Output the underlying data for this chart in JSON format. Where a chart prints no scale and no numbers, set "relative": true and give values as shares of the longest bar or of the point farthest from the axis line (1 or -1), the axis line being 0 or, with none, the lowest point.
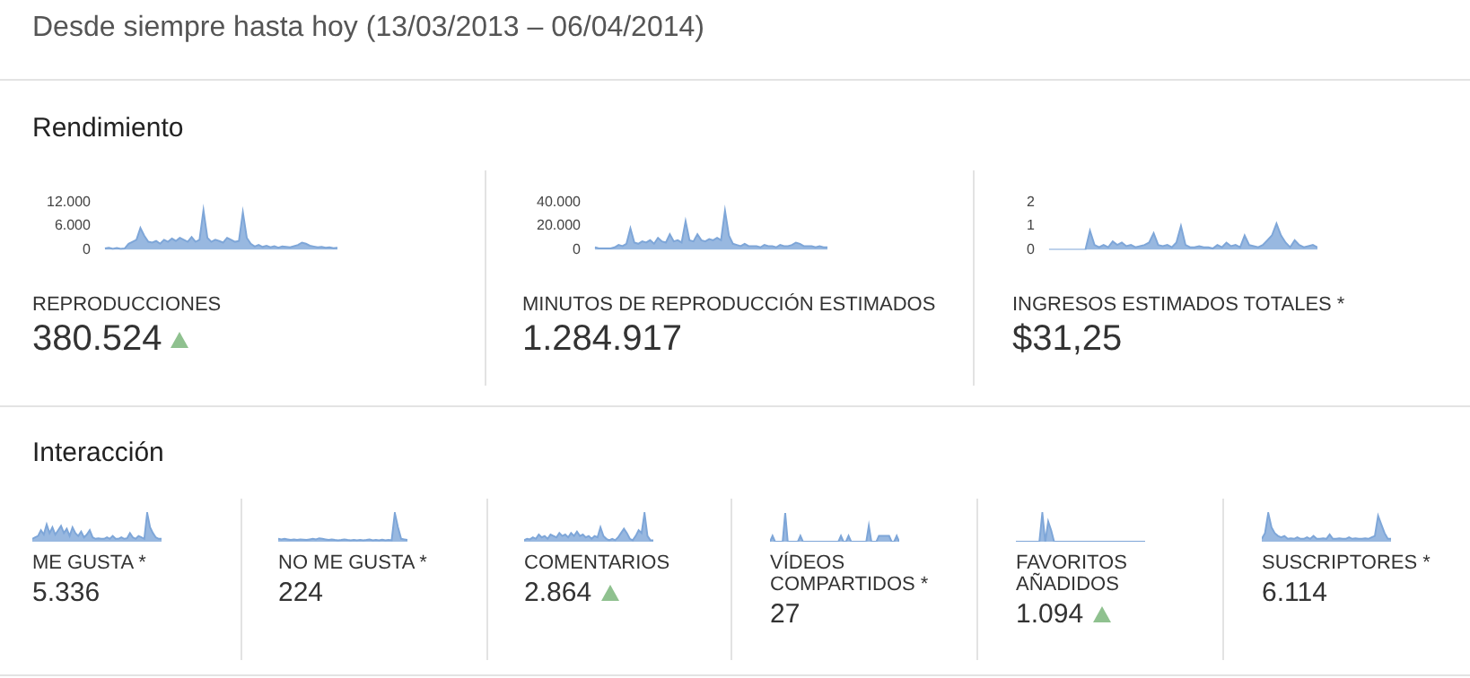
{
  "chart_data": [
    {
      "type": "area",
      "title": "REPRODUCCIONES",
      "annotations": [
        "Desde siempre hasta hoy (13/03/2013 – 06/04/2014)",
        "Rendimiento",
        "380.524"
      ],
      "color": "#7ea6d8",
      "ylim": [
        0,
        12000
      ],
      "yticks": [
        0,
        {
          "value": 6000,
          "label": "6.000"
        },
        {
          "value": 12000,
          "label": "12.000"
        }
      ],
      "tick_labels": "y",
      "grid": false,
      "legend": false,
      "values": [
        300,
        500,
        200,
        400,
        200,
        300,
        1500,
        2000,
        2500,
        5500,
        3500,
        2000,
        1800,
        2200,
        1500,
        2500,
        2000,
        2800,
        2200,
        3000,
        2500,
        2000,
        3200,
        2000,
        2500,
        10000,
        3000,
        2000,
        2500,
        2200,
        1800,
        3000,
        2500,
        2000,
        2200,
        9500,
        3000,
        1500,
        800,
        1200,
        700,
        1000,
        600,
        900,
        500,
        800,
        700,
        600,
        900,
        1200,
        1800,
        1500,
        1000,
        800,
        600,
        700,
        500,
        600,
        400,
        500
      ]
    },
    {
      "type": "area",
      "title": "MINUTOS DE REPRODUCCIÓN ESTIMADOS",
      "annotations": [
        "1.284.917"
      ],
      "color": "#7ea6d8",
      "ylim": [
        0,
        40000
      ],
      "yticks": [
        0,
        {
          "value": 20000,
          "label": "20.000"
        },
        {
          "value": 40000,
          "label": "40.000"
        }
      ],
      "tick_labels": "y",
      "grid": false,
      "legend": false,
      "values": [
        2000,
        1000,
        1000,
        1000,
        1000,
        2000,
        4000,
        3000,
        5000,
        18000,
        6000,
        5000,
        7000,
        6000,
        8000,
        5000,
        10000,
        7000,
        6000,
        13000,
        7000,
        8000,
        6000,
        24000,
        8000,
        7000,
        13000,
        8000,
        7000,
        9000,
        8000,
        10000,
        8000,
        33000,
        12000,
        5000,
        4000,
        3000,
        5000,
        3000,
        3000,
        3000,
        2000,
        4000,
        3000,
        3000,
        2000,
        4000,
        3000,
        3000,
        4000,
        6000,
        5000,
        3000,
        3000,
        3000,
        2000,
        3000,
        2000,
        2000
      ]
    },
    {
      "type": "area",
      "title": "INGRESOS ESTIMADOS TOTALES *",
      "annotations": [
        "$31,25"
      ],
      "color": "#7ea6d8",
      "ylim": [
        0,
        2
      ],
      "yticks": [
        0,
        1,
        2
      ],
      "tick_labels": "y",
      "grid": false,
      "legend": false,
      "values": [
        0,
        0,
        0,
        0,
        0,
        0,
        0,
        0,
        0,
        0.8,
        0.2,
        0.1,
        0.2,
        0.1,
        0.35,
        0.2,
        0.3,
        0.15,
        0.2,
        0.1,
        0.15,
        0.2,
        0.3,
        0.7,
        0.2,
        0.15,
        0.2,
        0.1,
        0.3,
        1.0,
        0.2,
        0.1,
        0.1,
        0.15,
        0.1,
        0.1,
        0.05,
        0.2,
        0.1,
        0.3,
        0.15,
        0.2,
        0.1,
        0.6,
        0.2,
        0.15,
        0.1,
        0.2,
        0.4,
        0.6,
        1.1,
        0.6,
        0.3,
        0.1,
        0.4,
        0.2,
        0.1,
        0.15,
        0.2,
        0.1
      ]
    },
    {
      "type": "area",
      "title": "ME GUSTA *",
      "annotations": [
        "Interacción",
        "5.336"
      ],
      "color": "#7ea6d8",
      "relative": true,
      "tick_labels": false,
      "grid": false,
      "legend": false,
      "values": [
        0.1,
        0.15,
        0.2,
        0.4,
        0.25,
        0.6,
        0.3,
        0.5,
        0.25,
        0.4,
        0.55,
        0.3,
        0.45,
        0.2,
        0.5,
        0.3,
        0.2,
        0.35,
        0.15,
        0.25,
        0.4,
        0.15,
        0.1,
        0.12,
        0.1,
        0.1,
        0.15,
        0.1,
        0.2,
        0.1,
        0.1,
        0.15,
        0.1,
        0.12,
        0.3,
        0.15,
        0.1,
        0.2,
        0.15,
        0.1,
        1.0,
        0.5,
        0.3,
        0.15,
        0.1,
        0.1
      ]
    },
    {
      "type": "area",
      "title": "NO ME GUSTA *",
      "annotations": [
        "224"
      ],
      "color": "#7ea6d8",
      "relative": true,
      "tick_labels": false,
      "grid": false,
      "legend": false,
      "values": [
        0.1,
        0.08,
        0.1,
        0.08,
        0.06,
        0.08,
        0.06,
        0.08,
        0.07,
        0.06,
        0.08,
        0.1,
        0.08,
        0.12,
        0.1,
        0.08,
        0.06,
        0.08,
        0.06,
        0.05,
        0.06,
        0.08,
        0.06,
        0.05,
        0.06,
        0.05,
        0.06,
        0.05,
        0.06,
        0.08,
        0.05,
        0.06,
        0.05,
        0.07,
        0.05,
        0.06,
        0.05,
        1.0,
        0.5,
        0.1,
        0.08,
        0.06
      ]
    },
    {
      "type": "area",
      "title": "COMENTARIOS",
      "annotations": [
        "2.864"
      ],
      "color": "#7ea6d8",
      "relative": true,
      "tick_labels": false,
      "grid": false,
      "legend": false,
      "values": [
        0.05,
        0.1,
        0.08,
        0.15,
        0.1,
        0.25,
        0.15,
        0.2,
        0.1,
        0.25,
        0.2,
        0.15,
        0.3,
        0.2,
        0.25,
        0.15,
        0.3,
        0.2,
        0.35,
        0.2,
        0.25,
        0.15,
        0.2,
        0.1,
        0.2,
        0.15,
        0.5,
        0.2,
        0.1,
        0.05,
        0.1,
        0.05,
        0.15,
        0.3,
        0.45,
        0.3,
        0.1,
        0.05,
        0.2,
        0.4,
        0.3,
        1.0,
        0.2,
        0.05,
        0.05
      ]
    },
    {
      "type": "area",
      "title": "VÍDEOS COMPARTIDOS *",
      "annotations": [
        "27"
      ],
      "color": "#7ea6d8",
      "relative": true,
      "tick_labels": false,
      "grid": false,
      "legend": false,
      "values": [
        0,
        0.2,
        0,
        0,
        0,
        0,
        1.0,
        0,
        0,
        0,
        0,
        0,
        0.2,
        0,
        0,
        0,
        0,
        0,
        0,
        0,
        0,
        0,
        0,
        0,
        0,
        0,
        0,
        0,
        0.2,
        0,
        0,
        0.2,
        0,
        0,
        0,
        0,
        0,
        0,
        0,
        0.55,
        0,
        0,
        0,
        0.2,
        0.2,
        0.2,
        0.2,
        0.2,
        0,
        0,
        0.2,
        0
      ]
    },
    {
      "type": "area",
      "title": "FAVORITOS AÑADIDOS",
      "annotations": [
        "1.094"
      ],
      "color": "#7ea6d8",
      "relative": true,
      "tick_labels": false,
      "grid": false,
      "legend": false,
      "values": [
        0,
        0,
        0,
        0,
        0,
        0,
        0,
        0,
        0,
        1.0,
        0,
        0.7,
        0.4,
        0,
        0,
        0,
        0,
        0,
        0,
        0,
        0,
        0,
        0,
        0,
        0,
        0,
        0,
        0,
        0,
        0,
        0,
        0,
        0,
        0,
        0,
        0,
        0,
        0,
        0,
        0,
        0,
        0,
        0,
        0,
        0
      ]
    },
    {
      "type": "area",
      "title": "SUSCRIPTORES *",
      "annotations": [
        "6.114"
      ],
      "color": "#7ea6d8",
      "relative": true,
      "tick_labels": false,
      "grid": false,
      "legend": false,
      "values": [
        0.1,
        0.3,
        1.0,
        0.5,
        0.3,
        0.2,
        0.15,
        0.2,
        0.1,
        0.12,
        0.1,
        0.15,
        0.1,
        0.1,
        0.15,
        0.1,
        0.2,
        0.1,
        0.1,
        0.12,
        0.1,
        0.25,
        0.1,
        0.1,
        0.12,
        0.1,
        0.1,
        0.15,
        0.1,
        0.12,
        0.1,
        0.1,
        0.12,
        0.1,
        0.15,
        0.2,
        0.9,
        0.6,
        0.3,
        0.1,
        0.1
      ]
    }
  ]
}
